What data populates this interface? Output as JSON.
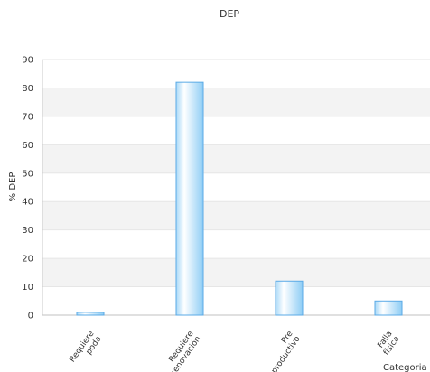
{
  "chart_data": {
    "type": "bar",
    "title": "DEP",
    "xlabel": "Categoria",
    "ylabel": "% DEP",
    "ylim": [
      0,
      90
    ],
    "yticks": [
      0,
      10,
      20,
      30,
      40,
      50,
      60,
      70,
      80,
      90
    ],
    "categories": [
      [
        "Requiere",
        "poda"
      ],
      [
        "Requiere",
        "renovación"
      ],
      [
        "Pre",
        "productivo"
      ],
      [
        "Falla",
        "física"
      ]
    ],
    "values": [
      1,
      82,
      12,
      5
    ],
    "grid": true,
    "colors": {
      "bar_edge": "#5aaae6",
      "bar_light": "#ffffff",
      "bar_dark": "#9fd3f7",
      "band": "#f3f3f3",
      "grid": "#e6e6e6"
    }
  }
}
